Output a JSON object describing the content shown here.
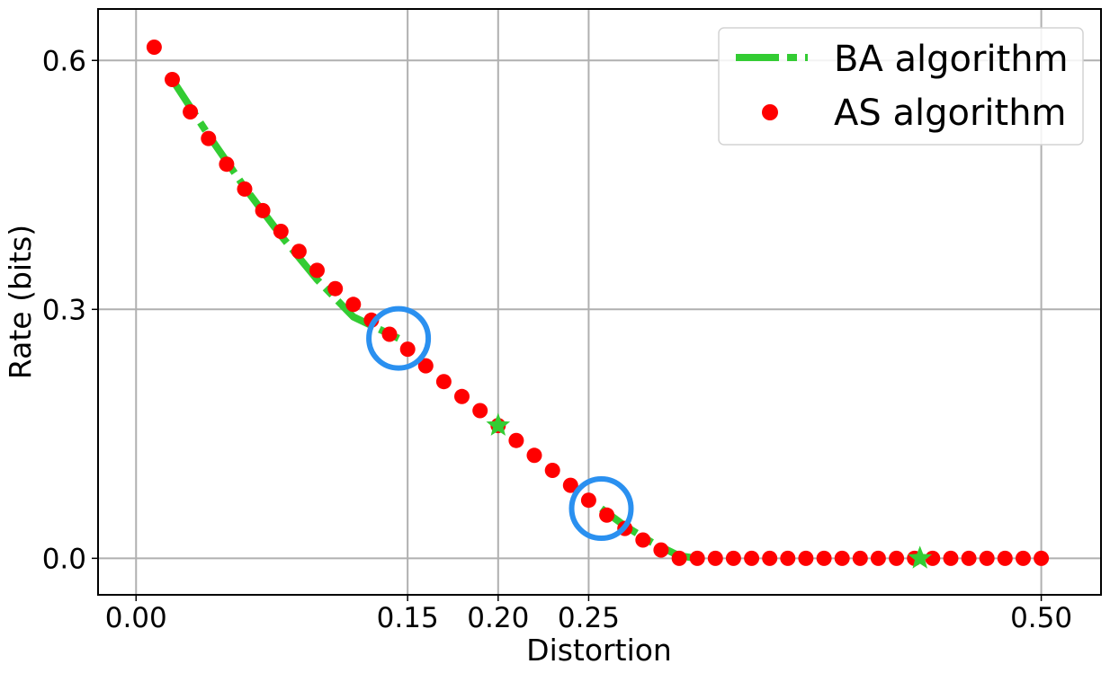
{
  "chart_data": {
    "type": "line",
    "title": "",
    "xlabel": "Distortion",
    "ylabel": "Rate (bits)",
    "xlim": [
      -0.021,
      0.533
    ],
    "ylim": [
      -0.044,
      0.662
    ],
    "grid": true,
    "legend_position": "top-right",
    "x_ticks": [
      {
        "value": 0.0,
        "label": "0.00"
      },
      {
        "value": 0.15,
        "label": "0.15"
      },
      {
        "value": 0.2,
        "label": "0.20"
      },
      {
        "value": 0.25,
        "label": "0.25"
      },
      {
        "value": 0.5,
        "label": "0.50"
      }
    ],
    "y_ticks": [
      {
        "value": 0.0,
        "label": "0.0"
      },
      {
        "value": 0.3,
        "label": "0.3"
      },
      {
        "value": 0.6,
        "label": "0.6"
      }
    ],
    "series": [
      {
        "name": "BA algorithm",
        "kind": "line",
        "style": "dash-dot",
        "color": "#33cc33",
        "segments": [
          {
            "x": [
              0.02,
              0.04,
              0.06,
              0.08,
              0.1,
              0.12,
              0.145
            ],
            "y": [
              0.577,
              0.51,
              0.447,
              0.389,
              0.336,
              0.291,
              0.265
            ]
          },
          {
            "x": [
              0.257,
              0.27,
              0.285,
              0.3,
              0.31
            ],
            "y": [
              0.06,
              0.039,
              0.019,
              0.003,
              0.0
            ]
          }
        ]
      },
      {
        "name": "AS algorithm",
        "kind": "scatter",
        "color": "#ff0000",
        "x": [
          0.01,
          0.02,
          0.03,
          0.04,
          0.05,
          0.06,
          0.07,
          0.08,
          0.09,
          0.1,
          0.11,
          0.12,
          0.13,
          0.14,
          0.15,
          0.16,
          0.17,
          0.18,
          0.19,
          0.2,
          0.21,
          0.22,
          0.23,
          0.24,
          0.25,
          0.26,
          0.27,
          0.28,
          0.29,
          0.3,
          0.31,
          0.32,
          0.33,
          0.34,
          0.35,
          0.36,
          0.37,
          0.38,
          0.39,
          0.4,
          0.41,
          0.42,
          0.43,
          0.44,
          0.45,
          0.46,
          0.47,
          0.48,
          0.49,
          0.5
        ],
        "y": [
          0.616,
          0.577,
          0.538,
          0.506,
          0.475,
          0.445,
          0.419,
          0.394,
          0.37,
          0.347,
          0.325,
          0.306,
          0.287,
          0.27,
          0.252,
          0.232,
          0.213,
          0.195,
          0.178,
          0.16,
          0.142,
          0.124,
          0.106,
          0.088,
          0.07,
          0.052,
          0.036,
          0.022,
          0.01,
          0.0,
          0.0,
          0.0,
          0.0,
          0.0,
          0.0,
          0.0,
          0.0,
          0.0,
          0.0,
          0.0,
          0.0,
          0.0,
          0.0,
          0.0,
          0.0,
          0.0,
          0.0,
          0.0,
          0.0,
          0.0
        ]
      }
    ],
    "annotations": {
      "stars": {
        "color": "#33cc33",
        "points": [
          {
            "x": 0.2,
            "y": 0.16
          },
          {
            "x": 0.433,
            "y": 0.0
          }
        ]
      },
      "circles": {
        "color": "#2a90f0",
        "points": [
          {
            "x": 0.145,
            "y": 0.265
          },
          {
            "x": 0.257,
            "y": 0.06
          }
        ]
      }
    }
  }
}
